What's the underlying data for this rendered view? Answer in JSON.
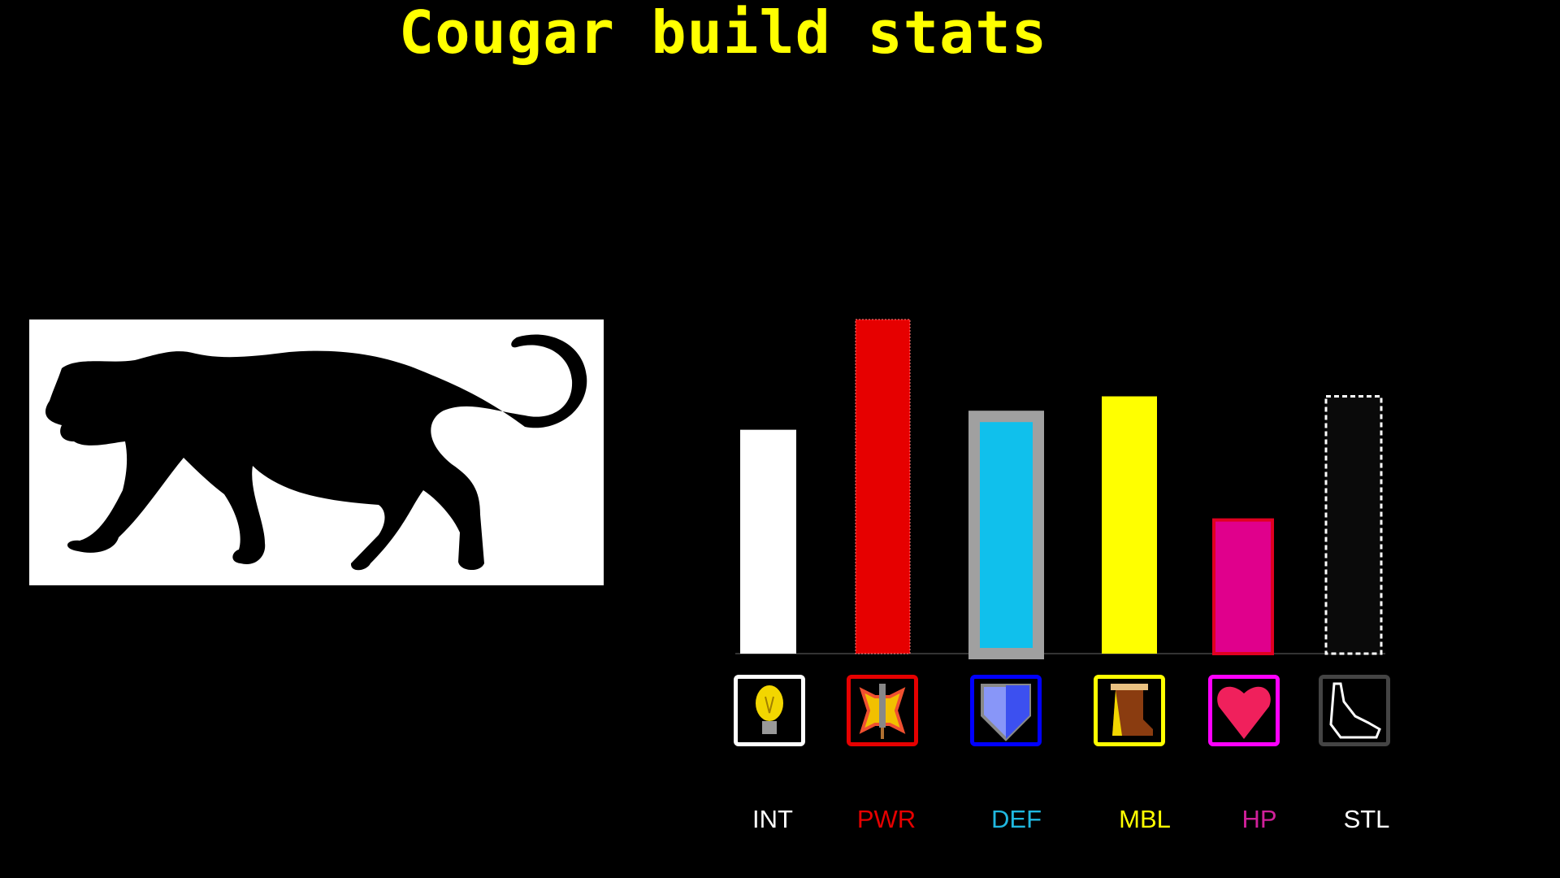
{
  "chart_data": {
    "type": "bar",
    "title": "Cougar build stats",
    "categories": [
      "INT",
      "PWR",
      "DEF",
      "MBL",
      "HP",
      "STL"
    ],
    "values": [
      6.7,
      10,
      7.1,
      7.7,
      4.0,
      7.7
    ],
    "ylim": [
      0,
      10
    ],
    "grid": false,
    "colors": [
      "#ffffff",
      "#e60000",
      "#10c0ec",
      "#ffff00",
      "#e0008c",
      "#0a0a0a"
    ],
    "label_colors": [
      "#ffffff",
      "#e60000",
      "#20b8e0",
      "#ffff00",
      "#d0209a",
      "#ffffff"
    ],
    "icon_border_colors": [
      "#ffffff",
      "#e60000",
      "#0000ff",
      "#ffff00",
      "#ff00ff",
      "#444444"
    ],
    "icons": [
      "lightbulb-icon",
      "sword-icon",
      "shield-icon",
      "boot-icon",
      "heart-icon",
      "cloak-icon"
    ]
  },
  "image": {
    "subject": "cougar-silhouette"
  }
}
